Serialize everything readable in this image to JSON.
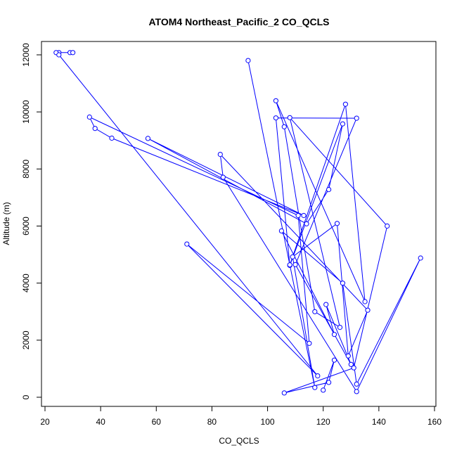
{
  "chart_data": {
    "type": "line",
    "title": "ATOM4 Northeast_Pacific_2 CO_QCLS",
    "xlabel": "CO_QCLS",
    "ylabel": "Altitude (m)",
    "xlim": [
      20,
      160
    ],
    "ylim": [
      0,
      12000
    ],
    "x_ticks": [
      20,
      40,
      60,
      80,
      100,
      120,
      140,
      160
    ],
    "y_ticks": [
      0,
      2000,
      4000,
      6000,
      8000,
      10000,
      12000
    ],
    "grid": false,
    "legend": "none",
    "color": "#0000ff",
    "markers": "open-circle",
    "series": [
      {
        "x": [
          29,
          30,
          25,
          24,
          25,
          118,
          71,
          115,
          111,
          36,
          38,
          44,
          113,
          57,
          114,
          122,
          127,
          108,
          103,
          132,
          110,
          130,
          121,
          124,
          105,
          127,
          132,
          155,
          132,
          84,
          83,
          136,
          129,
          125,
          109,
          117,
          93,
          108,
          128,
          135,
          103,
          106,
          117,
          126,
          108,
          143,
          131,
          106,
          122,
          124,
          120
        ],
        "y": [
          12080,
          12080,
          12080,
          12080,
          12000,
          750,
          5370,
          1890,
          6370,
          9820,
          9420,
          9080,
          6370,
          9070,
          6080,
          7280,
          9580,
          4620,
          9790,
          9780,
          4650,
          1150,
          3250,
          2200,
          5830,
          4000,
          460,
          4880,
          200,
          7710,
          8510,
          3050,
          1450,
          6090,
          4920,
          340,
          11800,
          4640,
          10270,
          3350,
          10390,
          9480,
          3000,
          2450,
          9800,
          6000,
          1030,
          150,
          520,
          1300,
          250
        ]
      }
    ]
  }
}
